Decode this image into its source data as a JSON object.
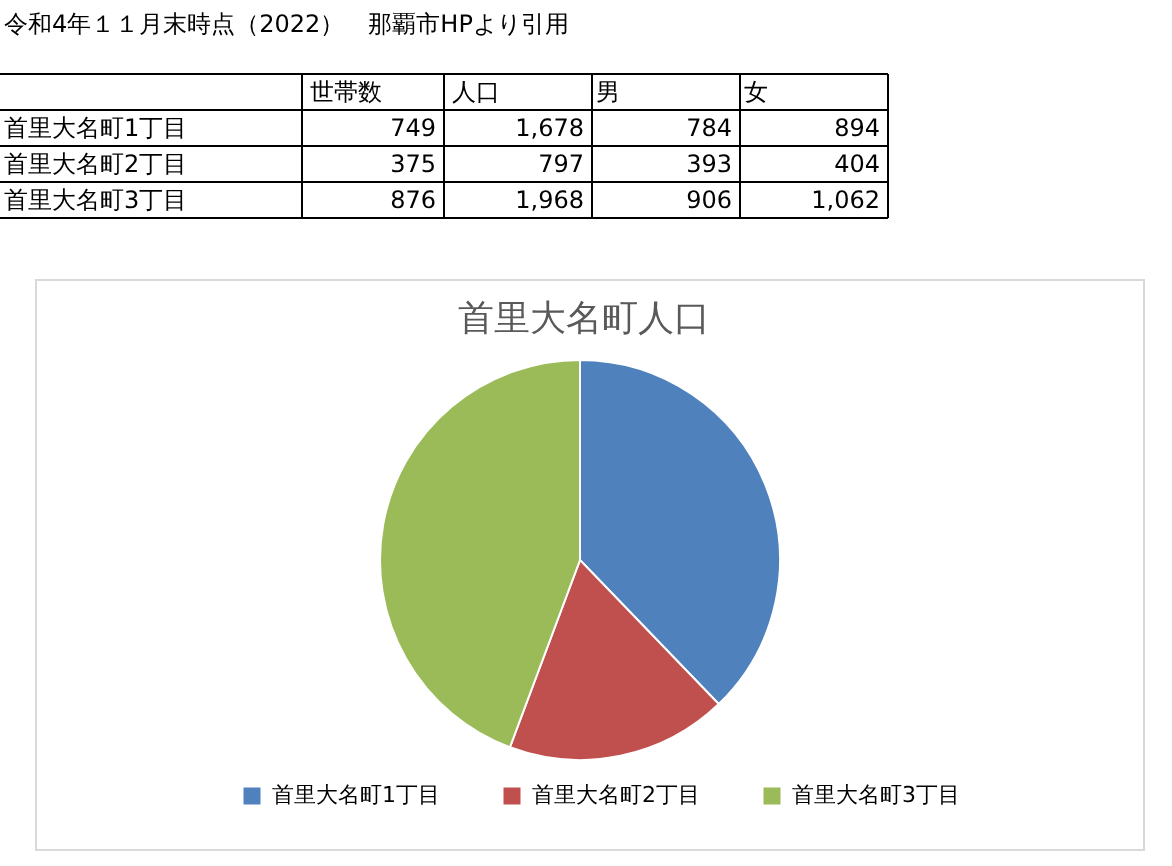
{
  "chart_data": {
    "type": "pie",
    "title": "首里大名町人口",
    "categories": [
      "首里大名町1丁目",
      "首里大名町2丁目",
      "首里大名町3丁目"
    ],
    "values": [
      37.8,
      17.9,
      44.3
    ],
    "colors": [
      "#4f81bd",
      "#c0504d",
      "#9bbb59"
    ],
    "legend": "bottom",
    "annotations": [
      "令和4年１１月末時点（2022）　那覇市HPより引用",
      "世帯数",
      "人口",
      "男",
      "女",
      "首里大名町1丁目",
      "749",
      "1,678",
      "784",
      "894",
      "首里大名町2丁目",
      "375",
      "797",
      "393",
      "404",
      "首里大名町3丁目",
      "876",
      "1,968",
      "906",
      "1,062"
    ]
  }
}
